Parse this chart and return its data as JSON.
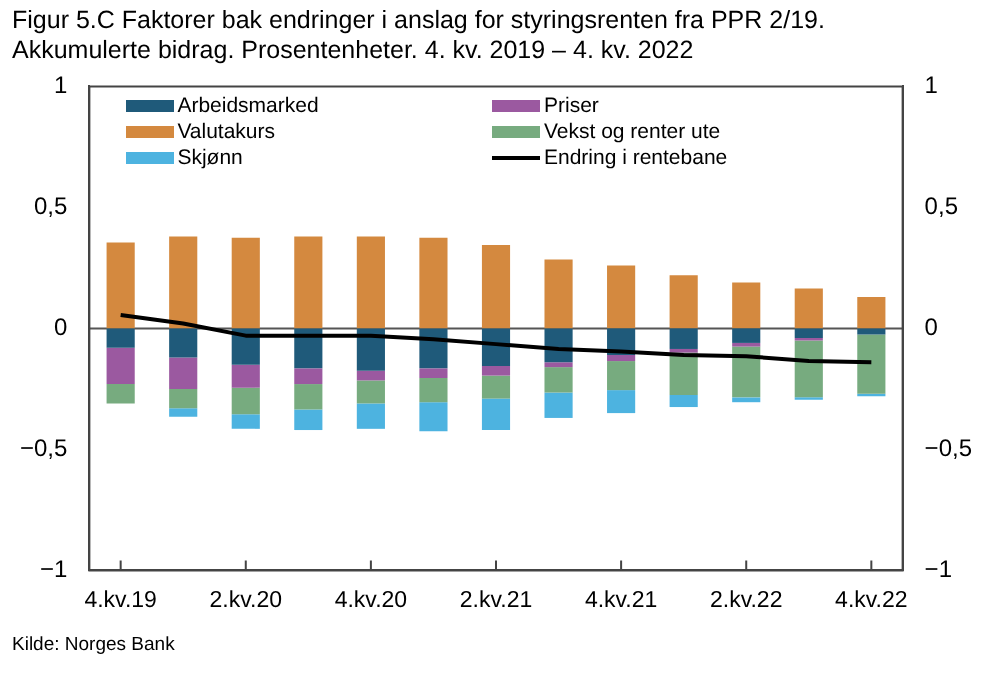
{
  "chart_data": {
    "type": "bar",
    "stacked": true,
    "title": "Figur 5.C Faktorer bak endringer i anslag for styringsrenten fra PPR 2/19.",
    "subtitle": "Akkumulerte bidrag. Prosentenheter. 4. kv. 2019 – 4. kv. 2022",
    "categories": [
      "4.kv.19",
      null,
      "2.kv.20",
      null,
      "4.kv.20",
      null,
      "2.kv.21",
      null,
      "4.kv.21",
      null,
      "2.kv.22",
      null,
      "4.kv.22"
    ],
    "series": [
      {
        "name": "Arbeidsmarked",
        "color": "#1f5a7a",
        "values": [
          -0.08,
          -0.12,
          -0.15,
          -0.165,
          -0.175,
          -0.165,
          -0.155,
          -0.14,
          -0.11,
          -0.085,
          -0.06,
          -0.04,
          -0.025
        ]
      },
      {
        "name": "Priser",
        "color": "#9b59a0",
        "values": [
          -0.15,
          -0.13,
          -0.095,
          -0.065,
          -0.04,
          -0.04,
          -0.04,
          -0.02,
          -0.025,
          -0.015,
          -0.015,
          -0.01,
          0
        ]
      },
      {
        "name": "Valutakurs",
        "color": "#d4893f",
        "values": [
          0.355,
          0.38,
          0.375,
          0.38,
          0.38,
          0.375,
          0.345,
          0.285,
          0.26,
          0.22,
          0.19,
          0.165,
          0.13
        ]
      },
      {
        "name": "Vekst og renter ute",
        "color": "#77ab7f",
        "values": [
          -0.08,
          -0.08,
          -0.11,
          -0.105,
          -0.095,
          -0.1,
          -0.095,
          -0.105,
          -0.12,
          -0.175,
          -0.21,
          -0.235,
          -0.245
        ]
      },
      {
        "name": "Skjønn",
        "color": "#4db3e0",
        "values": [
          0,
          -0.035,
          -0.06,
          -0.085,
          -0.105,
          -0.12,
          -0.13,
          -0.105,
          -0.095,
          -0.05,
          -0.02,
          -0.01,
          -0.01
        ]
      },
      {
        "name": "Endring i rentebane",
        "type": "line",
        "color": "#000000",
        "values": [
          0.055,
          0.02,
          -0.03,
          -0.03,
          -0.03,
          -0.045,
          -0.065,
          -0.085,
          -0.095,
          -0.11,
          -0.115,
          -0.135,
          -0.14
        ]
      }
    ],
    "ylim": [
      -1,
      1
    ],
    "yticks": [
      {
        "value": -1,
        "label": "−1"
      },
      {
        "value": -0.5,
        "label": "−0,5"
      },
      0,
      {
        "value": 0.5,
        "label": "0,5"
      },
      1
    ],
    "y2lim": [
      -1,
      1
    ],
    "y2ticks": [
      {
        "value": -1,
        "label": "−1"
      },
      {
        "value": -0.5,
        "label": "−0,5"
      },
      0,
      {
        "value": 0.5,
        "label": "0,5"
      },
      1
    ],
    "ref_lines": [
      {
        "axis": "y",
        "value": 0,
        "color": "#555555"
      }
    ],
    "grid": false,
    "legend": "top",
    "marker": "none",
    "annotations": [
      "Kilde: Norges Bank"
    ]
  }
}
